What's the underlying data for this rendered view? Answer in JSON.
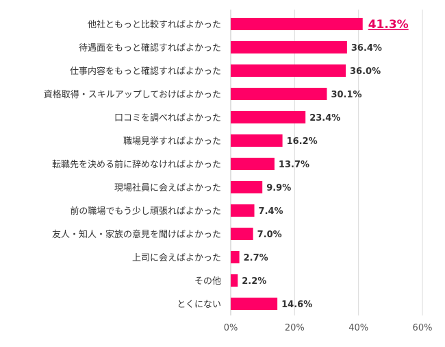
{
  "chart_data": {
    "type": "bar",
    "orientation": "horizontal",
    "categories": [
      "他社ともっと比較すればよかった",
      "待遇面をもっと確認すればよかった",
      "仕事内容をもっと確認すればよかった",
      "資格取得・スキルアップしておけばよかった",
      "口コミを調べればよかった",
      "職場見学すればよかった",
      "転職先を決める前に辞めなければよかった",
      "現場社員に会えばよかった",
      "前の職場でもう少し頑張ればよかった",
      "友人・知人・家族の意見を聞けばよかった",
      "上司に会えばよかった",
      "その他",
      "とくにない"
    ],
    "values": [
      41.3,
      36.4,
      36.0,
      30.1,
      23.4,
      16.2,
      13.7,
      9.9,
      7.4,
      7.0,
      2.7,
      2.2,
      14.6
    ],
    "value_labels": [
      "41.3%",
      "36.4%",
      "36.0%",
      "30.1%",
      "23.4%",
      "16.2%",
      "13.7%",
      "9.9%",
      "7.4%",
      "7.0%",
      "2.7%",
      "2.2%",
      "14.6%"
    ],
    "highlight_index": 0,
    "xlim": [
      0,
      60
    ],
    "xticks": [
      0,
      20,
      40,
      60
    ],
    "xtick_labels": [
      "0%",
      "20%",
      "40%",
      "60%"
    ],
    "grid": true,
    "legend": "none",
    "title": "",
    "xlabel": "",
    "ylabel": "",
    "colors": {
      "bar": "#ff0066",
      "highlight_text": "#e8005f",
      "grid": "#d9d9d9"
    }
  }
}
